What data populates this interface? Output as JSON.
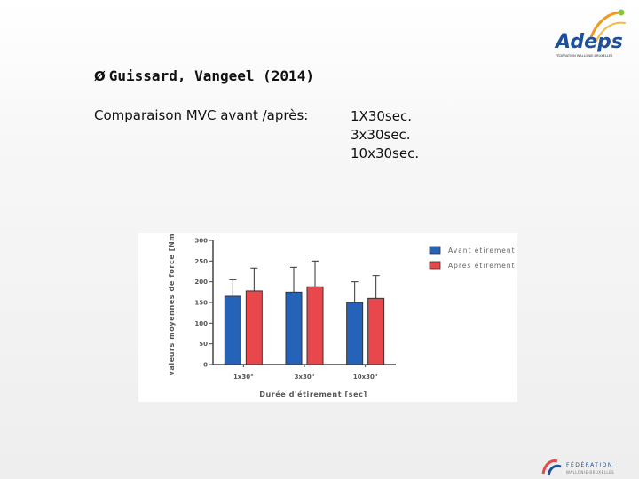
{
  "heading": {
    "arrow": "Ø",
    "text": "Guissard, Vangeel (2014)"
  },
  "subtitle": "Comparaison MVC avant /après:",
  "protocols": [
    "1X30sec.",
    "3x30sec.",
    "10x30sec."
  ],
  "logo": {
    "name": "Adeps",
    "tagline": "FÉDÉRATION WALLONIE-BRUXELLES"
  },
  "footer_logo": {
    "name": "FÉDÉRATION",
    "subline": "WALLONIE-BRUXELLES"
  },
  "chart_data": {
    "type": "bar",
    "categories": [
      "1x30\"",
      "3x30\"",
      "10x30\""
    ],
    "series": [
      {
        "name": "Avant étirement",
        "values": [
          165,
          175,
          150
        ],
        "errors": [
          40,
          60,
          50
        ],
        "color": "#2463b8"
      },
      {
        "name": "Apres étirement",
        "values": [
          178,
          188,
          160
        ],
        "errors": [
          55,
          62,
          55
        ],
        "color": "#e8484c"
      }
    ],
    "xlabel": "Durée d'étirement [sec]",
    "ylabel": "valeurs moyennes de force [Nm]",
    "ylim": [
      0,
      300
    ],
    "yticks": [
      "0",
      "50",
      "100",
      "150",
      "200",
      "250",
      "300"
    ],
    "legend_position": "top-right",
    "grid": false
  }
}
